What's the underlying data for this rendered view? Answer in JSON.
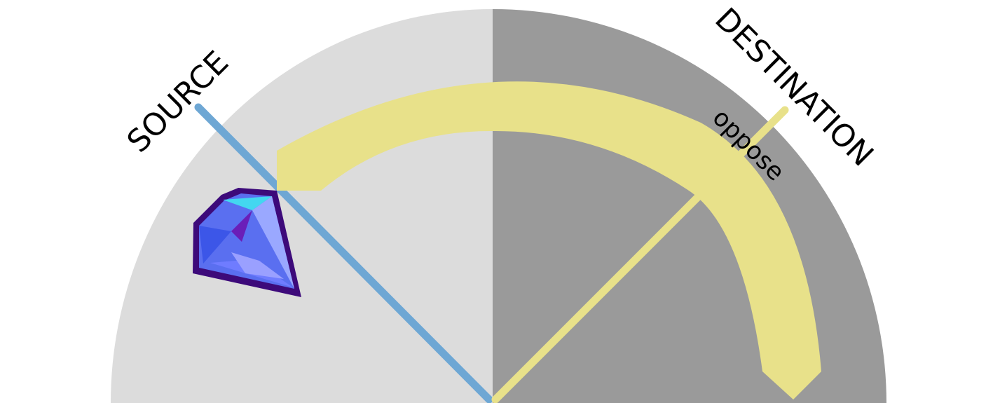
{
  "labels": {
    "source": "SOURCE",
    "destination": "DESTINATION",
    "oppose": "oppose"
  },
  "icons": {
    "gem": "gem-icon"
  },
  "colors": {
    "left_half": "#dcdcdc",
    "right_half": "#9a9a9a",
    "source_line": "#6ea7d4",
    "destination_line": "#e8e18a",
    "arc_band": "#e8e18a",
    "gem_outline": "#3d0a7a"
  }
}
